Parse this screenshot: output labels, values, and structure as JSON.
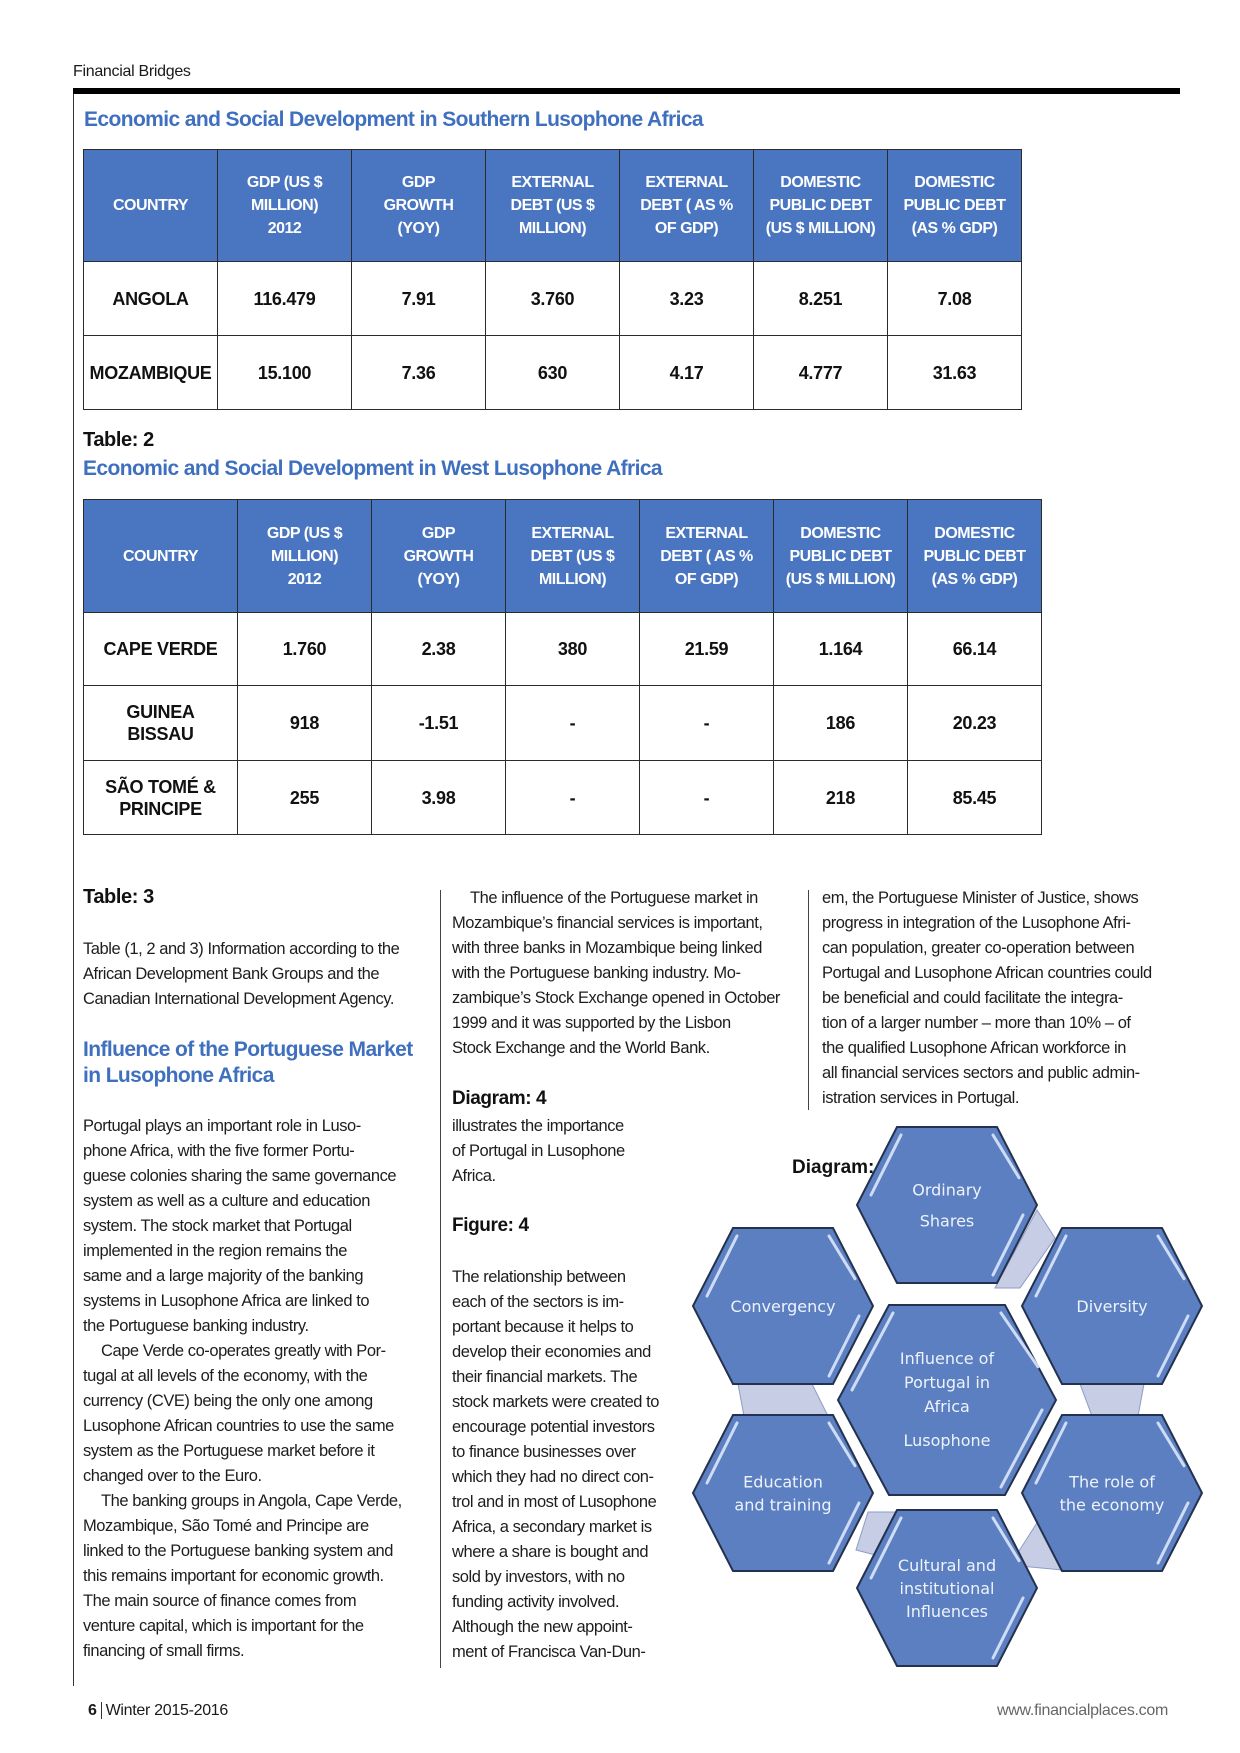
{
  "header": {
    "running_title": "Financial Bridges"
  },
  "table1": {
    "title": "Economic and Social Development in Southern Lusophone Africa",
    "columns": [
      [
        "COUNTRY"
      ],
      [
        "GDP (US $",
        "MILLION)",
        "2012"
      ],
      [
        "GDP",
        "GROWTH",
        "(YOY)"
      ],
      [
        "EXTERNAL",
        "DEBT (US $",
        "MILLION)"
      ],
      [
        "EXTERNAL",
        "DEBT ( AS %",
        "OF GDP)"
      ],
      [
        "DOMESTIC",
        "PUBLIC DEBT",
        "(US $ MILLION)"
      ],
      [
        "DOMESTIC",
        "PUBLIC DEBT",
        "(AS % GDP)"
      ]
    ],
    "rows": [
      [
        "ANGOLA",
        "116.479",
        "7.91",
        "3.760",
        "3.23",
        "8.251",
        "7.08"
      ],
      [
        "MOZAMBIQUE",
        "15.100",
        "7.36",
        "630",
        "4.17",
        "4.777",
        "31.63"
      ]
    ]
  },
  "table2": {
    "label": "Table: 2",
    "title": "Economic and Social Development in West Lusophone Africa",
    "columns": [
      [
        "COUNTRY"
      ],
      [
        "GDP (US $",
        "MILLION)",
        "2012"
      ],
      [
        "GDP",
        "GROWTH",
        "(YOY)"
      ],
      [
        "EXTERNAL",
        "DEBT (US $",
        "MILLION)"
      ],
      [
        "EXTERNAL",
        "DEBT ( AS %",
        "OF GDP)"
      ],
      [
        "DOMESTIC",
        "PUBLIC DEBT",
        "(US $ MILLION)"
      ],
      [
        "DOMESTIC",
        "PUBLIC DEBT",
        "(AS % GDP)"
      ]
    ],
    "rows": [
      [
        "CAPE VERDE",
        "1.760",
        "2.38",
        "380",
        "21.59",
        "1.164",
        "66.14"
      ],
      [
        "GUINEA BISSAU",
        "918",
        "-1.51",
        "-",
        "-",
        "186",
        "20.23"
      ],
      [
        "SÃO TOMÉ & PRINCIPE",
        "255",
        "3.98",
        "-",
        "-",
        "218",
        "85.45"
      ]
    ]
  },
  "left_col": {
    "label": "Table: 3",
    "source_lines": [
      "Table (1, 2 and 3) Information according to the",
      "African Development Bank Groups and the",
      "Canadian International Development Agency."
    ],
    "heading_lines": [
      "Influence of the Portuguese Market",
      "in Lusophone Africa"
    ],
    "body_lines": [
      "Portugal plays an important role in Luso-",
      "phone Africa, with the five former Portu-",
      "guese colonies sharing the same governance",
      "system as well as a culture and education",
      "system. The stock market that Portugal",
      "implemented in the region remains the",
      "same and a large majority of the banking",
      "systems in Lusophone Africa are linked to",
      "the Portuguese banking industry.",
      "Cape Verde co-operates greatly with Por-",
      "tugal at all levels of the economy, with the",
      "currency (CVE) being the only one among",
      "Lusophone African countries to use the same",
      "system as the Portuguese market before it",
      "changed over to the Euro.",
      "The banking groups in Angola, Cape Verde,",
      "Mozambique, São Tomé and Principe are",
      "linked to the Portuguese banking system and",
      "this remains important for economic growth.",
      "The main source of finance comes from",
      "venture capital, which is important for the",
      "financing of small firms."
    ]
  },
  "mid_col": {
    "para_lines": [
      "The influence of the Portuguese market in",
      "Mozambique’s financial services is important,",
      "with three banks in Mozambique being linked",
      "with the Portuguese banking industry. Mo-",
      "zambique’s Stock Exchange opened in October",
      "1999 and it was supported by the Lisbon",
      "Stock Exchange and the World Bank."
    ],
    "diagram_label": "Diagram: 4",
    "diagram_lines": [
      "illustrates the importance",
      "of Portugal in Lusophone",
      "Africa."
    ],
    "figure_label": "Figure: 4",
    "figure_lines": [
      "The relationship between",
      "each of the sectors is im-",
      "portant because it helps to",
      "develop their economies and",
      "their financial markets. The",
      "stock markets were created to",
      "encourage potential investors",
      "to finance businesses over",
      "which they had no direct con-",
      "trol and in most of Lusophone",
      "Africa, a secondary market is",
      "where a share is bought and",
      "sold by investors, with no",
      "funding activity involved.",
      "Although the new appoint-",
      "ment of  Francisca Van-Dun-"
    ]
  },
  "right_col": {
    "lines": [
      "em, the Portuguese Minister of Justice, shows",
      "progress in integration of the Lusophone Afri-",
      "can population, greater co-operation between",
      "Portugal and Lusophone African countries could",
      "be beneficial and could facilitate the integra-",
      "tion of a larger number – more than 10% – of",
      "the qualified Lusophone African workforce in",
      "all financial services sectors and public admin-",
      "istration services in Portugal."
    ]
  },
  "diagram": {
    "label": "Diagram: 4",
    "center": [
      "Influence of",
      "Portugal in",
      "Africa",
      "Lusophone"
    ],
    "top": [
      "Ordinary",
      "Shares"
    ],
    "upper_left": [
      "Convergency"
    ],
    "upper_right": [
      "Diversity"
    ],
    "lower_left": [
      "Education",
      "and training"
    ],
    "lower_right": [
      "The role of",
      "the economy"
    ],
    "bottom": [
      "Cultural and",
      "institutional",
      "Influences"
    ]
  },
  "footer": {
    "page_number": "6",
    "issue": "Winter 2015-2016",
    "website": "www.financialplaces.com"
  }
}
